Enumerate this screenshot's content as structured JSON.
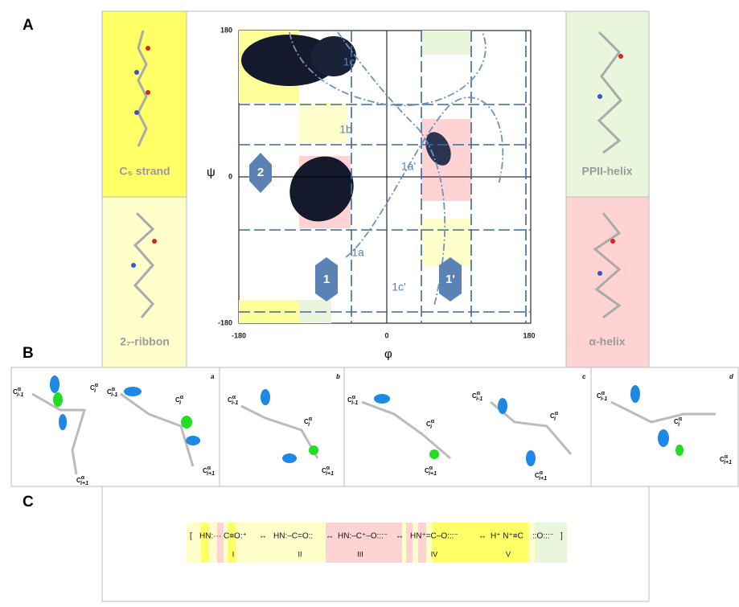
{
  "panel_a": {
    "label": "A",
    "structures": [
      "C₅ strand",
      "2₇-ribbon",
      "PPII-helix",
      "α-helix"
    ],
    "plot": {
      "y_label": "ψ",
      "x_label": "φ",
      "yticks": [
        180,
        0,
        -180
      ],
      "xticks": [
        -180,
        0,
        180
      ],
      "regions": [
        "1c",
        "1b",
        "1a'",
        "1a",
        "1c'"
      ],
      "arrows": [
        "2",
        "1",
        "1'"
      ]
    }
  },
  "panel_b": {
    "label": "B",
    "subpanels": [
      {
        "letter": "a",
        "atoms": [
          {
            "base": "C",
            "sup": "α",
            "sub": "i-1"
          },
          {
            "base": "C",
            "sup": "α",
            "sub": "i"
          },
          {
            "base": "C",
            "sup": "α",
            "sub": "i+1"
          },
          {
            "base": "C",
            "sup": "α",
            "sub": "i-1"
          },
          {
            "base": "C",
            "sup": "α",
            "sub": "i"
          },
          {
            "base": "C",
            "sup": "α",
            "sub": "i+1"
          }
        ]
      },
      {
        "letter": "b",
        "atoms": [
          {
            "base": "C",
            "sup": "α",
            "sub": "i-1"
          },
          {
            "base": "C",
            "sup": "α",
            "sub": "i"
          },
          {
            "base": "C",
            "sup": "α",
            "sub": "i+1"
          }
        ]
      },
      {
        "letter": "c",
        "atoms": [
          {
            "base": "C",
            "sup": "α",
            "sub": "i-1"
          },
          {
            "base": "C",
            "sup": "α",
            "sub": "i"
          },
          {
            "base": "C",
            "sup": "α",
            "sub": "i+1"
          },
          {
            "base": "C",
            "sup": "α",
            "sub": "i-1"
          },
          {
            "base": "C",
            "sup": "α",
            "sub": "i"
          },
          {
            "base": "C",
            "sup": "α",
            "sub": "i+1"
          }
        ]
      },
      {
        "letter": "d",
        "atoms": [
          {
            "base": "C",
            "sup": "α",
            "sub": "i-1"
          },
          {
            "base": "C",
            "sup": "α",
            "sub": "i"
          },
          {
            "base": "C",
            "sup": "α",
            "sub": "i+1"
          }
        ]
      }
    ]
  },
  "panel_c": {
    "label": "C",
    "open": "[",
    "close": "]",
    "arrow": "↔",
    "forms": [
      {
        "text": "HN:··· C≡O:⁺",
        "numeral": "I"
      },
      {
        "text": "HN:–C=O::",
        "numeral": "II"
      },
      {
        "text": "HN:–C⁺–O:::⁻",
        "numeral": "III"
      },
      {
        "text": "HN⁺=C–O:::⁻",
        "numeral": "IV"
      },
      {
        "text": "H⁺ N⁺≡C",
        "numeral": "V"
      }
    ],
    "tail": "::O:::⁻"
  }
}
